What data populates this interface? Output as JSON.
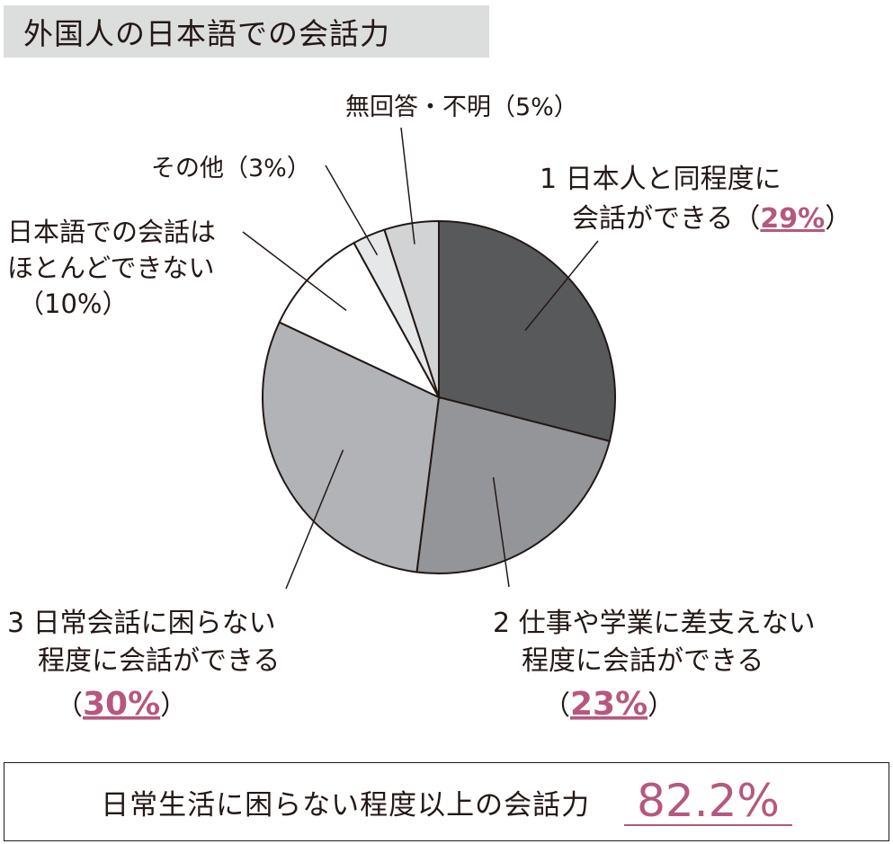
{
  "chart_data": {
    "type": "pie",
    "title": "外国人の日本語での会話力",
    "start_angle_deg": 0,
    "direction": "clockwise",
    "slices": [
      {
        "label_lines": [
          "1 日本人と同程度に",
          "会話ができる（",
          "29%",
          "）"
        ],
        "value": 29,
        "color": "#58595b"
      },
      {
        "label_lines": [
          "2 仕事や学業に差支えない",
          "程度に会話ができる",
          "（",
          "23%",
          "）"
        ],
        "value": 23,
        "color": "#939598"
      },
      {
        "label_lines": [
          "3 日常会話に困らない",
          "程度に会話ができる",
          "（",
          "30%",
          "）"
        ],
        "value": 30,
        "color": "#b1b3b6"
      },
      {
        "label_lines": [
          "日本語での会話は",
          "ほとんどできない",
          "（10%）"
        ],
        "value": 10,
        "color": "#ffffff"
      },
      {
        "label_lines": [
          "その他（3%）"
        ],
        "value": 3,
        "color": "#e6e7e8"
      },
      {
        "label_lines": [
          "無回答・不明（5%）"
        ],
        "value": 5,
        "color": "#d1d3d4"
      }
    ],
    "highlight_color": "#b5587f"
  },
  "summary": {
    "text": "日常生活に困らない程度以上の会話力",
    "value": "82.2%"
  }
}
